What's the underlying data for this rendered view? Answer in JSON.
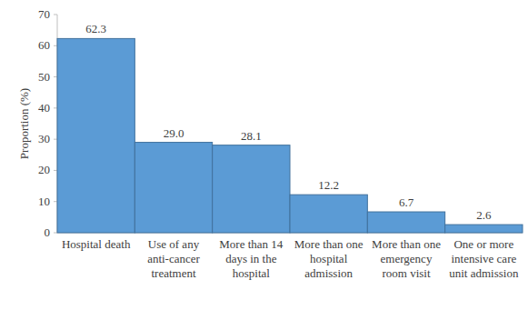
{
  "chart_data": {
    "type": "bar",
    "ylabel": "Proportion (%)",
    "categories": [
      "Hospital death",
      "Use of any anti-cancer treatment",
      "More than 14 days in the hospital",
      "More than one hospital admission",
      "More than one emergency room visit",
      "One or more intensive care unit admission"
    ],
    "values": [
      62.3,
      29.0,
      28.1,
      12.2,
      6.7,
      2.6
    ],
    "value_labels": [
      "62.3",
      "29.0",
      "28.1",
      "12.2",
      "6.7",
      "2.6"
    ],
    "color": "#5b9bd5",
    "ylim": [
      0,
      70
    ],
    "yticks": [
      0,
      10,
      20,
      30,
      40,
      50,
      60,
      70
    ],
    "grid": false,
    "data_labels": true
  }
}
